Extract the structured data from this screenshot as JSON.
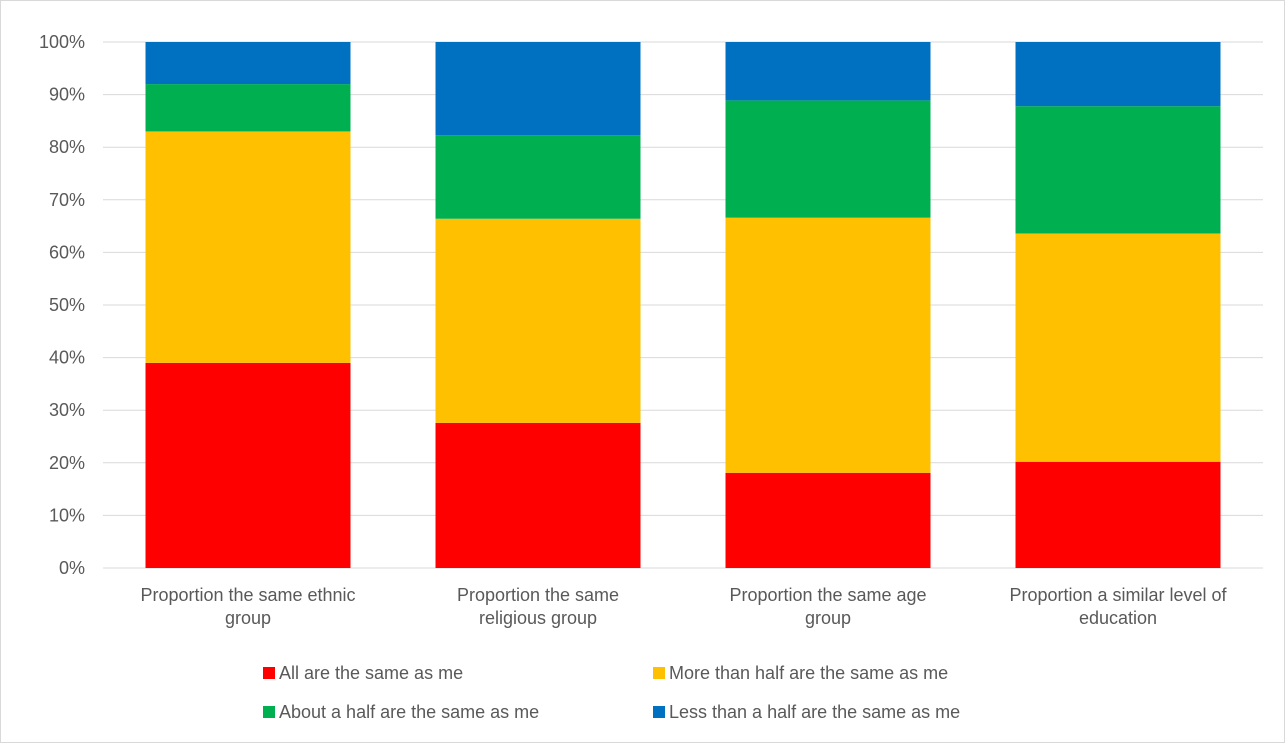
{
  "chart_data": {
    "type": "bar",
    "stacked": true,
    "percent_stacked": true,
    "categories": [
      [
        "Proportion the same ethnic",
        "group"
      ],
      [
        "Proportion the same",
        "religious group"
      ],
      [
        "Proportion the same age",
        "group"
      ],
      [
        "Proportion a similar level of",
        "education"
      ]
    ],
    "series": [
      {
        "name": "All are the same as me",
        "color": "#ff0000",
        "values": [
          39,
          27.6,
          18.1,
          20.2
        ]
      },
      {
        "name": "More than half are the same as me",
        "color": "#ffc000",
        "values": [
          44,
          38.8,
          48.5,
          43.4
        ]
      },
      {
        "name": "About a half are the same as me",
        "color": "#00b050",
        "values": [
          9,
          15.9,
          22.3,
          24.2
        ]
      },
      {
        "name": "Less than a half are the same as me",
        "color": "#0070c0",
        "values": [
          8,
          17.7,
          11.1,
          12.2
        ]
      }
    ],
    "yticks": [
      "0%",
      "10%",
      "20%",
      "30%",
      "40%",
      "50%",
      "60%",
      "70%",
      "80%",
      "90%",
      "100%"
    ],
    "ylim": [
      0,
      100
    ],
    "grid": true,
    "legend_position": "bottom",
    "title": "",
    "xlabel": "",
    "ylabel": ""
  }
}
